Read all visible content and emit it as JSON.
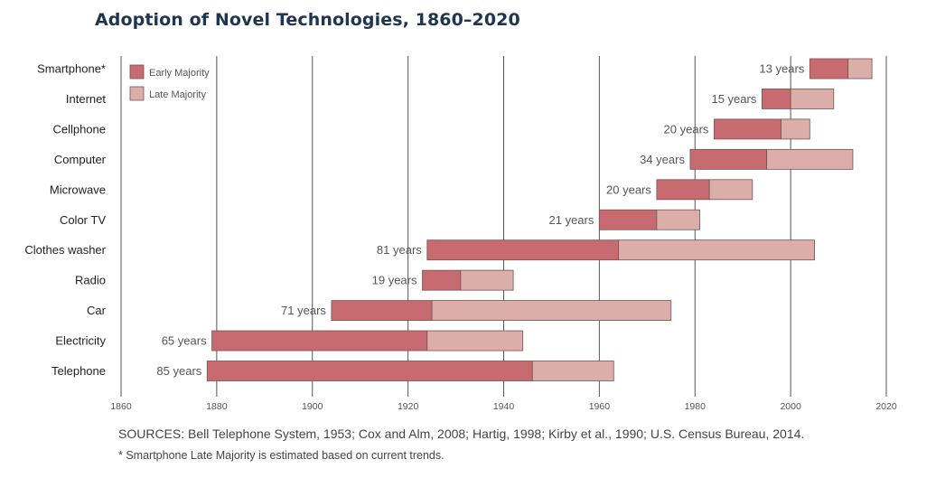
{
  "title": "Adoption of Novel Technologies, 1860–2020",
  "sources": "SOURCES: Bell Telephone System, 1953; Cox and Alm, 2008; Hartig, 1998; Kirby et al., 1990; U.S. Census Bureau, 2014.",
  "footnote": "*  Smartphone Late Majority is estimated based on current trends.",
  "colors": {
    "early": "#c76b70",
    "late": "#dcaeaa",
    "grid": "#555555",
    "bar_stroke": "#7a5050"
  },
  "chart_data": {
    "type": "bar",
    "orientation": "horizontal-range",
    "xlim": [
      1860,
      2020
    ],
    "x_ticks": [
      1860,
      1880,
      1900,
      1920,
      1940,
      1960,
      1980,
      2000,
      2020
    ],
    "grid": true,
    "legend_position": "top-left",
    "series": [
      {
        "name": "Early Majority",
        "color": "#c76b70"
      },
      {
        "name": "Late Majority",
        "color": "#dcaeaa"
      }
    ],
    "categories": [
      "Smartphone*",
      "Internet",
      "Cellphone",
      "Computer",
      "Microwave",
      "Color TV",
      "Clothes washer",
      "Radio",
      "Car",
      "Electricity",
      "Telephone"
    ],
    "rows": [
      {
        "name": "Smartphone*",
        "start": 2004,
        "mid": 2012,
        "end": 2017,
        "label": "13 years"
      },
      {
        "name": "Internet",
        "start": 1994,
        "mid": 2000,
        "end": 2009,
        "label": "15 years"
      },
      {
        "name": "Cellphone",
        "start": 1984,
        "mid": 1998,
        "end": 2004,
        "label": "20 years"
      },
      {
        "name": "Computer",
        "start": 1979,
        "mid": 1995,
        "end": 2013,
        "label": "34 years"
      },
      {
        "name": "Microwave",
        "start": 1972,
        "mid": 1983,
        "end": 1992,
        "label": "20 years"
      },
      {
        "name": "Color TV",
        "start": 1960,
        "mid": 1972,
        "end": 1981,
        "label": "21 years"
      },
      {
        "name": "Clothes washer",
        "start": 1924,
        "mid": 1964,
        "end": 2005,
        "label": "81 years"
      },
      {
        "name": "Radio",
        "start": 1923,
        "mid": 1931,
        "end": 1942,
        "label": "19 years"
      },
      {
        "name": "Car",
        "start": 1904,
        "mid": 1925,
        "end": 1975,
        "label": "71 years"
      },
      {
        "name": "Electricity",
        "start": 1879,
        "mid": 1924,
        "end": 1944,
        "label": "65 years"
      },
      {
        "name": "Telephone",
        "start": 1878,
        "mid": 1946,
        "end": 1963,
        "label": "85 years"
      }
    ]
  }
}
